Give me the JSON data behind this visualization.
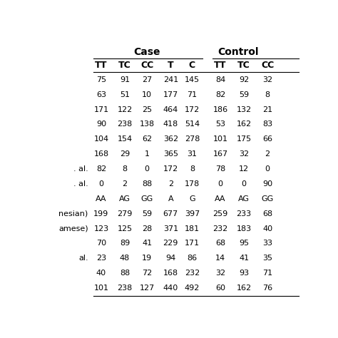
{
  "col_headers_case": [
    "TT",
    "TC",
    "CC",
    "T",
    "C"
  ],
  "col_headers_control": [
    "TT",
    "TC",
    "CC"
  ],
  "group_header_case": "Case",
  "group_header_control": "Control",
  "row_labels": [
    "",
    "",
    "",
    "",
    "",
    "",
    ". al.",
    ". al.",
    "",
    "nesian)",
    "amese)",
    "",
    "al.",
    "",
    ""
  ],
  "rows": [
    [
      "75",
      "91",
      "27",
      "241",
      "145",
      "84",
      "92",
      "32"
    ],
    [
      "63",
      "51",
      "10",
      "177",
      "71",
      "82",
      "59",
      "8"
    ],
    [
      "171",
      "122",
      "25",
      "464",
      "172",
      "186",
      "132",
      "21"
    ],
    [
      "90",
      "238",
      "138",
      "418",
      "514",
      "53",
      "162",
      "83"
    ],
    [
      "104",
      "154",
      "62",
      "362",
      "278",
      "101",
      "175",
      "66"
    ],
    [
      "168",
      "29",
      "1",
      "365",
      "31",
      "167",
      "32",
      "2"
    ],
    [
      "82",
      "8",
      "0",
      "172",
      "8",
      "78",
      "12",
      "0"
    ],
    [
      "0",
      "2",
      "88",
      "2",
      "178",
      "0",
      "0",
      "90"
    ],
    [
      "AA",
      "AG",
      "GG",
      "A",
      "G",
      "AA",
      "AG",
      "GG"
    ],
    [
      "199",
      "279",
      "59",
      "677",
      "397",
      "259",
      "233",
      "68"
    ],
    [
      "123",
      "125",
      "28",
      "371",
      "181",
      "232",
      "183",
      "40"
    ],
    [
      "70",
      "89",
      "41",
      "229",
      "171",
      "68",
      "95",
      "33"
    ],
    [
      "23",
      "48",
      "19",
      "94",
      "86",
      "14",
      "41",
      "35"
    ],
    [
      "40",
      "88",
      "72",
      "168",
      "232",
      "32",
      "93",
      "71"
    ],
    [
      "101",
      "238",
      "127",
      "440",
      "492",
      "60",
      "162",
      "76"
    ]
  ],
  "bg_color": "#ffffff",
  "text_color": "#000000",
  "header_line_color": "#000000",
  "font_size": 8.0,
  "header_font_size": 9.0,
  "fig_width": 4.74,
  "fig_height": 4.74,
  "dpi": 100
}
